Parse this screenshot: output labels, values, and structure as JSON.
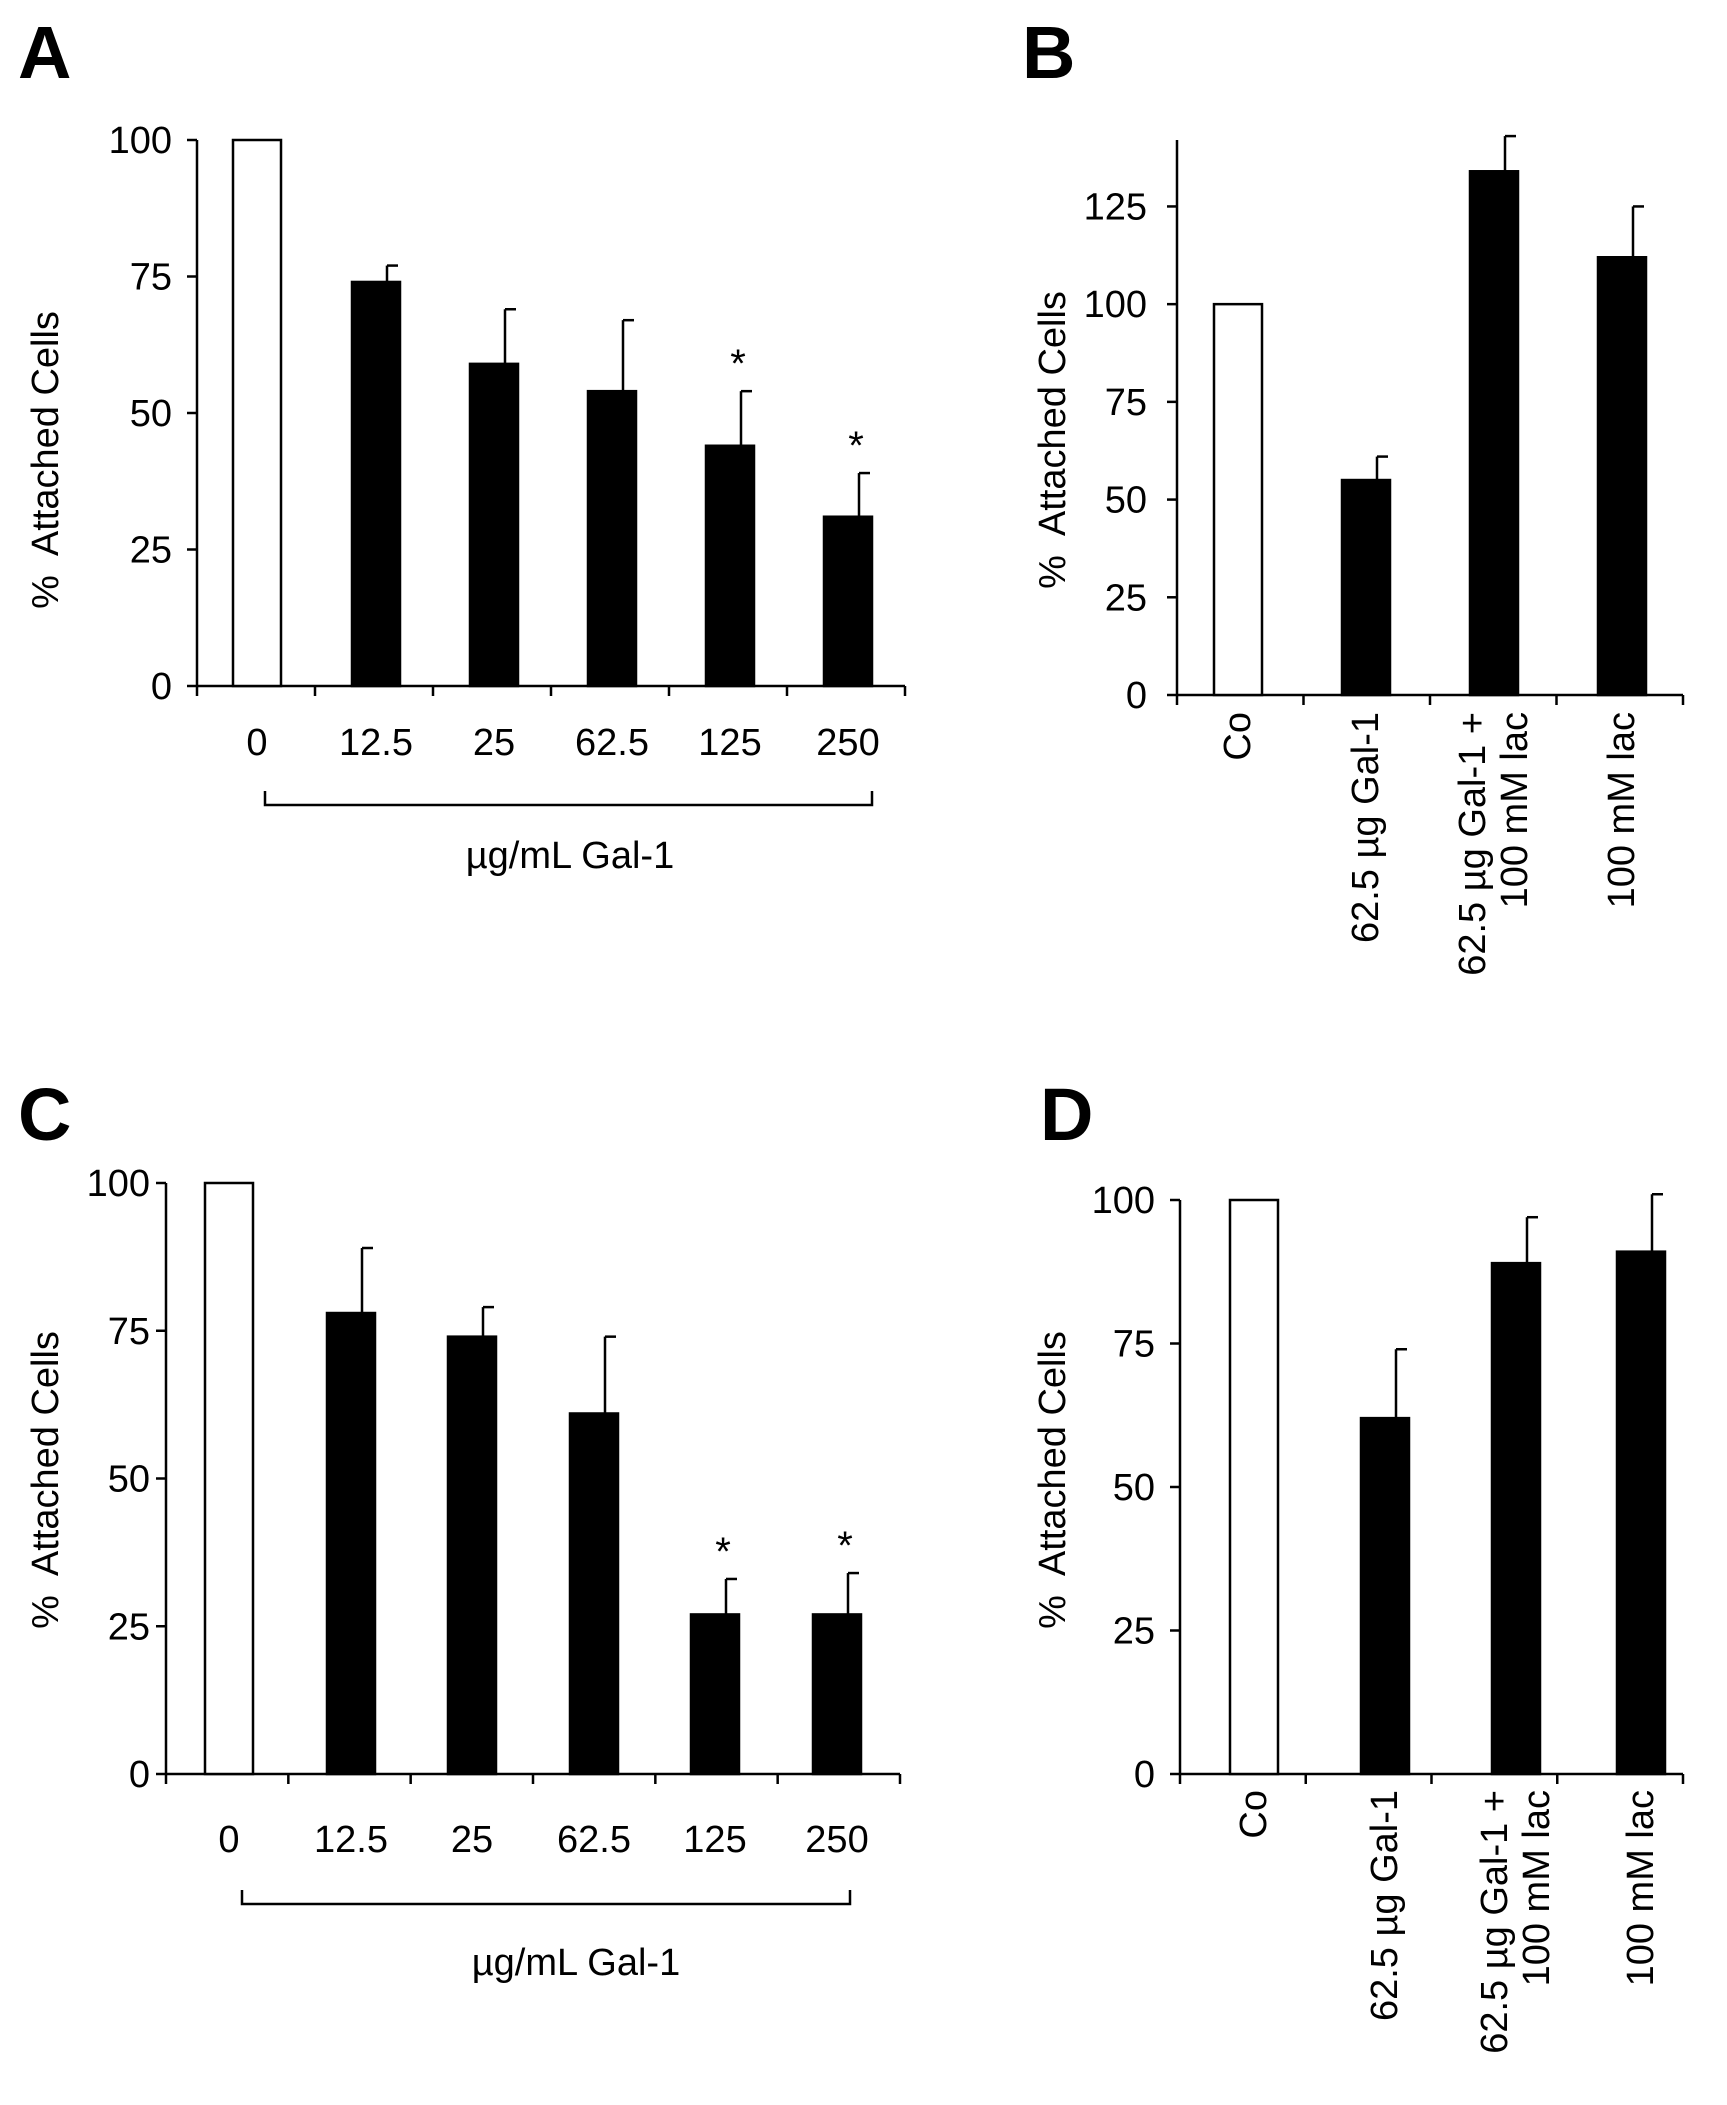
{
  "figure": {
    "background": "#ffffff",
    "open_bar_color": "#ffffff",
    "filled_bar_color": "#000000"
  },
  "chart_data": [
    {
      "panel": "A",
      "type": "bar",
      "ylabel": "%  Attached Cells",
      "xlabel": "µg/mL Gal-1",
      "ylim": [
        0,
        100
      ],
      "yticks": [
        "0",
        "25",
        "50",
        "75",
        "100"
      ],
      "categories": [
        "0",
        "12.5",
        "25",
        "62.5",
        "125",
        "250"
      ],
      "values": [
        100,
        74,
        59,
        54,
        44,
        31
      ],
      "errors": [
        0,
        3,
        10,
        13,
        10,
        8
      ],
      "fills": [
        "open",
        "filled",
        "filled",
        "filled",
        "filled",
        "filled"
      ],
      "significance": [
        "",
        "",
        "",
        "",
        "*",
        "*"
      ],
      "label_rotation": "horizontal",
      "bracket": true
    },
    {
      "panel": "B",
      "type": "bar",
      "ylabel": "%  Attached Cells",
      "xlabel": "",
      "ylim": [
        0,
        142
      ],
      "yticks": [
        "0",
        "25",
        "50",
        "75",
        "100",
        "125"
      ],
      "categories": [
        "Co",
        "62.5 µg Gal-1",
        "62.5 µg Gal-1 +|100 mM lac",
        "100 mM lac"
      ],
      "values": [
        100,
        55,
        134,
        112
      ],
      "errors": [
        0,
        6,
        9,
        13
      ],
      "fills": [
        "open",
        "filled",
        "filled",
        "filled"
      ],
      "significance": [
        "",
        "",
        "",
        ""
      ],
      "label_rotation": "vertical",
      "bracket": false
    },
    {
      "panel": "C",
      "type": "bar",
      "ylabel": "%  Attached Cells",
      "xlabel": "µg/mL Gal-1",
      "ylim": [
        0,
        100
      ],
      "yticks": [
        "0",
        "25",
        "50",
        "75",
        "100"
      ],
      "categories": [
        "0",
        "12.5",
        "25",
        "62.5",
        "125",
        "250"
      ],
      "values": [
        100,
        78,
        74,
        61,
        27,
        27
      ],
      "errors": [
        0,
        11,
        5,
        13,
        6,
        7
      ],
      "fills": [
        "open",
        "filled",
        "filled",
        "filled",
        "filled",
        "filled"
      ],
      "significance": [
        "",
        "",
        "",
        "",
        "*",
        "*"
      ],
      "label_rotation": "horizontal",
      "bracket": true
    },
    {
      "panel": "D",
      "type": "bar",
      "ylabel": "%  Attached Cells",
      "xlabel": "",
      "ylim": [
        0,
        100
      ],
      "yticks": [
        "0",
        "25",
        "50",
        "75",
        "100"
      ],
      "categories": [
        "Co",
        "62.5 µg Gal-1",
        "62.5 µg Gal-1 +|100 mM lac",
        "100 mM lac"
      ],
      "values": [
        100,
        62,
        89,
        91
      ],
      "errors": [
        0,
        12,
        8,
        10
      ],
      "fills": [
        "open",
        "filled",
        "filled",
        "filled"
      ],
      "significance": [
        "",
        "",
        "",
        ""
      ],
      "label_rotation": "vertical",
      "bracket": false
    }
  ]
}
